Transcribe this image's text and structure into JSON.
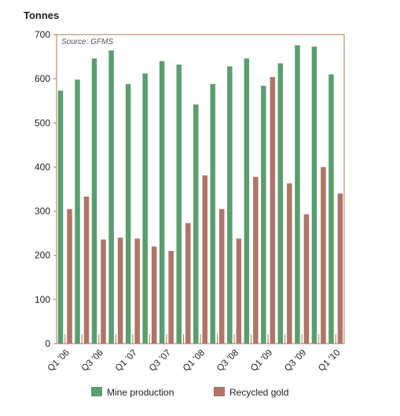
{
  "chart_data": {
    "type": "bar",
    "ylabel": "Tonnes",
    "source": "Source: GFMS",
    "ylim": [
      0,
      700
    ],
    "yticks": [
      0,
      100,
      200,
      300,
      400,
      500,
      600,
      700
    ],
    "categories": [
      "Q1 '06",
      "Q2 '06",
      "Q3 '06",
      "Q4 '06",
      "Q1 '07",
      "Q2 '07",
      "Q3 '07",
      "Q4 '07",
      "Q1 '08",
      "Q2 '08",
      "Q3 '08",
      "Q4 '08",
      "Q1 '09",
      "Q2 '09",
      "Q3 '09",
      "Q4 '09",
      "Q1 '10"
    ],
    "tick_labels": [
      "Q1 '06",
      "Q3 '06",
      "Q1 '07",
      "Q3 '07",
      "Q1 '08",
      "Q3 '08",
      "Q1 '09",
      "Q3 '09",
      "Q1 '10"
    ],
    "series": [
      {
        "name": "Mine production",
        "color": "#5a9e6f",
        "values": [
          573,
          598,
          646,
          664,
          588,
          612,
          640,
          632,
          542,
          588,
          628,
          646,
          584,
          635,
          676,
          673,
          610
        ]
      },
      {
        "name": "Recycled gold",
        "color": "#b07468",
        "values": [
          305,
          333,
          236,
          240,
          238,
          220,
          210,
          273,
          381,
          305,
          238,
          378,
          604,
          363,
          293,
          400,
          340
        ]
      }
    ],
    "grid": false,
    "legend_position": "bottom"
  }
}
